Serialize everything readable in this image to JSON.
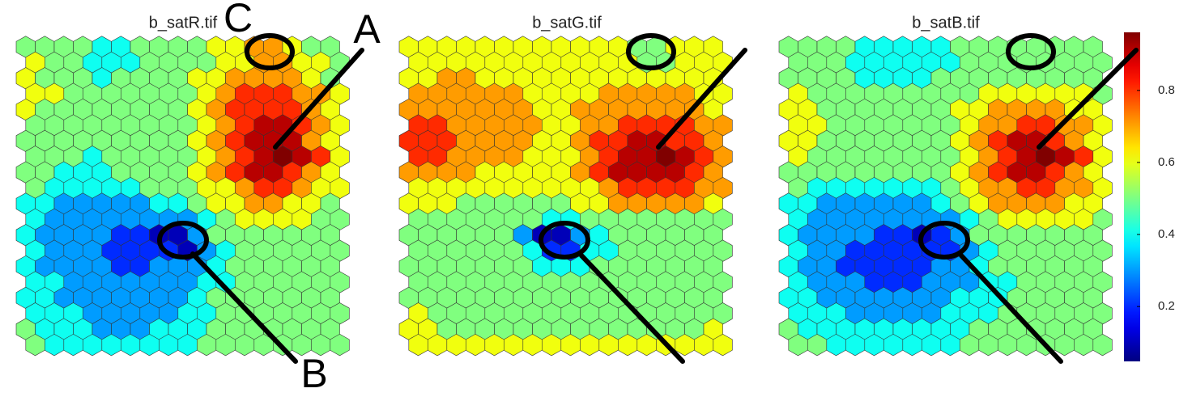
{
  "chart_data": [
    {
      "type": "hexmap",
      "title": "b_satR.tif",
      "values": [
        [
          0.5,
          0.5,
          0.5,
          0.5,
          0.4,
          0.4,
          0.5,
          0.5,
          0.5,
          0.5,
          0.6,
          0.6,
          0.7,
          0.7,
          0.6,
          0.5,
          0.5
        ],
        [
          0.6,
          0.5,
          0.5,
          0.4,
          0.4,
          0.4,
          0.5,
          0.5,
          0.5,
          0.5,
          0.6,
          0.6,
          0.7,
          0.7,
          0.6,
          0.6,
          0.5
        ],
        [
          0.6,
          0.5,
          0.5,
          0.5,
          0.4,
          0.5,
          0.5,
          0.5,
          0.5,
          0.6,
          0.6,
          0.7,
          0.7,
          0.7,
          0.7,
          0.6,
          0.5
        ],
        [
          0.6,
          0.6,
          0.5,
          0.5,
          0.5,
          0.5,
          0.5,
          0.5,
          0.5,
          0.6,
          0.7,
          0.8,
          0.8,
          0.8,
          0.7,
          0.7,
          0.6
        ],
        [
          0.6,
          0.5,
          0.5,
          0.5,
          0.5,
          0.5,
          0.5,
          0.5,
          0.5,
          0.6,
          0.7,
          0.8,
          0.8,
          0.8,
          0.8,
          0.7,
          0.6
        ],
        [
          0.5,
          0.5,
          0.5,
          0.5,
          0.5,
          0.5,
          0.5,
          0.5,
          0.5,
          0.6,
          0.7,
          0.8,
          0.9,
          0.9,
          0.8,
          0.7,
          0.6
        ],
        [
          0.5,
          0.5,
          0.5,
          0.5,
          0.5,
          0.5,
          0.5,
          0.5,
          0.5,
          0.6,
          0.7,
          0.8,
          0.9,
          0.9,
          0.9,
          0.7,
          0.6
        ],
        [
          0.5,
          0.5,
          0.5,
          0.4,
          0.5,
          0.5,
          0.5,
          0.5,
          0.5,
          0.6,
          0.7,
          0.8,
          0.9,
          0.95,
          0.9,
          0.8,
          0.6
        ],
        [
          0.5,
          0.5,
          0.4,
          0.4,
          0.4,
          0.5,
          0.5,
          0.5,
          0.5,
          0.6,
          0.7,
          0.8,
          0.9,
          0.9,
          0.8,
          0.7,
          0.6
        ],
        [
          0.5,
          0.4,
          0.4,
          0.4,
          0.4,
          0.4,
          0.5,
          0.5,
          0.5,
          0.6,
          0.6,
          0.7,
          0.8,
          0.8,
          0.7,
          0.6,
          0.6
        ],
        [
          0.4,
          0.4,
          0.3,
          0.3,
          0.3,
          0.3,
          0.3,
          0.4,
          0.4,
          0.5,
          0.6,
          0.6,
          0.7,
          0.7,
          0.6,
          0.6,
          0.5
        ],
        [
          0.4,
          0.3,
          0.3,
          0.3,
          0.3,
          0.3,
          0.3,
          0.3,
          0.3,
          0.4,
          0.5,
          0.6,
          0.6,
          0.6,
          0.6,
          0.5,
          0.5
        ],
        [
          0.4,
          0.3,
          0.3,
          0.3,
          0.3,
          0.2,
          0.2,
          0.1,
          0.1,
          0.3,
          0.5,
          0.5,
          0.5,
          0.5,
          0.5,
          0.5,
          0.5
        ],
        [
          0.4,
          0.3,
          0.3,
          0.3,
          0.2,
          0.2,
          0.2,
          0.2,
          0.1,
          0.3,
          0.4,
          0.5,
          0.5,
          0.5,
          0.5,
          0.5,
          0.5
        ],
        [
          0.4,
          0.3,
          0.3,
          0.3,
          0.3,
          0.2,
          0.2,
          0.3,
          0.3,
          0.3,
          0.4,
          0.5,
          0.5,
          0.5,
          0.5,
          0.5,
          0.5
        ],
        [
          0.4,
          0.4,
          0.3,
          0.3,
          0.3,
          0.3,
          0.3,
          0.3,
          0.3,
          0.4,
          0.4,
          0.5,
          0.5,
          0.5,
          0.5,
          0.5,
          0.5
        ],
        [
          0.4,
          0.4,
          0.3,
          0.3,
          0.3,
          0.3,
          0.3,
          0.3,
          0.3,
          0.4,
          0.5,
          0.5,
          0.5,
          0.5,
          0.5,
          0.5,
          0.5
        ],
        [
          0.4,
          0.4,
          0.4,
          0.3,
          0.3,
          0.3,
          0.3,
          0.3,
          0.4,
          0.4,
          0.5,
          0.5,
          0.5,
          0.5,
          0.5,
          0.5,
          0.5
        ],
        [
          0.5,
          0.4,
          0.4,
          0.4,
          0.3,
          0.3,
          0.3,
          0.4,
          0.4,
          0.4,
          0.5,
          0.5,
          0.5,
          0.5,
          0.5,
          0.5,
          0.5
        ],
        [
          0.5,
          0.4,
          0.4,
          0.4,
          0.4,
          0.4,
          0.4,
          0.4,
          0.4,
          0.5,
          0.5,
          0.5,
          0.5,
          0.5,
          0.5,
          0.5,
          0.5
        ]
      ]
    },
    {
      "type": "hexmap",
      "title": "b_satG.tif",
      "values": [
        [
          0.6,
          0.6,
          0.6,
          0.6,
          0.6,
          0.6,
          0.6,
          0.6,
          0.6,
          0.6,
          0.6,
          0.6,
          0.5,
          0.5,
          0.6,
          0.6,
          0.6
        ],
        [
          0.6,
          0.6,
          0.6,
          0.6,
          0.6,
          0.6,
          0.6,
          0.6,
          0.6,
          0.6,
          0.6,
          0.6,
          0.5,
          0.5,
          0.6,
          0.6,
          0.6
        ],
        [
          0.6,
          0.6,
          0.7,
          0.7,
          0.6,
          0.6,
          0.6,
          0.6,
          0.6,
          0.6,
          0.6,
          0.6,
          0.6,
          0.6,
          0.6,
          0.6,
          0.6
        ],
        [
          0.7,
          0.7,
          0.7,
          0.7,
          0.7,
          0.7,
          0.6,
          0.6,
          0.6,
          0.6,
          0.7,
          0.7,
          0.7,
          0.7,
          0.7,
          0.6,
          0.6
        ],
        [
          0.7,
          0.7,
          0.7,
          0.7,
          0.7,
          0.7,
          0.7,
          0.6,
          0.6,
          0.7,
          0.7,
          0.7,
          0.7,
          0.7,
          0.7,
          0.7,
          0.6
        ],
        [
          0.8,
          0.8,
          0.7,
          0.7,
          0.7,
          0.7,
          0.7,
          0.6,
          0.6,
          0.7,
          0.7,
          0.8,
          0.8,
          0.8,
          0.8,
          0.7,
          0.7
        ],
        [
          0.8,
          0.8,
          0.8,
          0.7,
          0.7,
          0.7,
          0.7,
          0.6,
          0.6,
          0.7,
          0.8,
          0.8,
          0.9,
          0.9,
          0.8,
          0.8,
          0.7
        ],
        [
          0.8,
          0.8,
          0.7,
          0.7,
          0.7,
          0.7,
          0.6,
          0.6,
          0.6,
          0.7,
          0.8,
          0.9,
          0.9,
          0.95,
          0.9,
          0.8,
          0.7
        ],
        [
          0.7,
          0.7,
          0.7,
          0.7,
          0.6,
          0.6,
          0.6,
          0.6,
          0.6,
          0.7,
          0.8,
          0.9,
          0.9,
          0.9,
          0.9,
          0.8,
          0.7
        ],
        [
          0.6,
          0.6,
          0.6,
          0.6,
          0.6,
          0.6,
          0.6,
          0.6,
          0.6,
          0.6,
          0.7,
          0.8,
          0.8,
          0.8,
          0.8,
          0.7,
          0.7
        ],
        [
          0.6,
          0.6,
          0.6,
          0.5,
          0.5,
          0.5,
          0.5,
          0.5,
          0.5,
          0.6,
          0.6,
          0.7,
          0.7,
          0.7,
          0.7,
          0.7,
          0.6
        ],
        [
          0.5,
          0.5,
          0.5,
          0.5,
          0.5,
          0.5,
          0.5,
          0.4,
          0.4,
          0.5,
          0.5,
          0.5,
          0.5,
          0.5,
          0.5,
          0.5,
          0.5
        ],
        [
          0.5,
          0.5,
          0.5,
          0.5,
          0.5,
          0.5,
          0.3,
          0.1,
          0.1,
          0.3,
          0.4,
          0.5,
          0.5,
          0.5,
          0.5,
          0.5,
          0.5
        ],
        [
          0.5,
          0.5,
          0.5,
          0.5,
          0.5,
          0.5,
          0.4,
          0.2,
          0.2,
          0.4,
          0.4,
          0.5,
          0.5,
          0.5,
          0.5,
          0.5,
          0.5
        ],
        [
          0.5,
          0.5,
          0.5,
          0.5,
          0.5,
          0.5,
          0.5,
          0.4,
          0.4,
          0.4,
          0.5,
          0.5,
          0.5,
          0.5,
          0.5,
          0.5,
          0.5
        ],
        [
          0.5,
          0.5,
          0.5,
          0.5,
          0.5,
          0.5,
          0.5,
          0.5,
          0.5,
          0.5,
          0.5,
          0.5,
          0.5,
          0.5,
          0.5,
          0.5,
          0.5
        ],
        [
          0.5,
          0.5,
          0.5,
          0.5,
          0.5,
          0.5,
          0.5,
          0.5,
          0.5,
          0.5,
          0.5,
          0.5,
          0.5,
          0.5,
          0.5,
          0.5,
          0.5
        ],
        [
          0.6,
          0.5,
          0.5,
          0.5,
          0.5,
          0.5,
          0.5,
          0.5,
          0.5,
          0.5,
          0.5,
          0.5,
          0.5,
          0.5,
          0.5,
          0.5,
          0.5
        ],
        [
          0.6,
          0.6,
          0.5,
          0.5,
          0.5,
          0.5,
          0.5,
          0.5,
          0.5,
          0.5,
          0.5,
          0.5,
          0.5,
          0.5,
          0.5,
          0.5,
          0.6
        ],
        [
          0.6,
          0.6,
          0.6,
          0.6,
          0.6,
          0.6,
          0.6,
          0.6,
          0.6,
          0.6,
          0.6,
          0.6,
          0.6,
          0.6,
          0.6,
          0.6,
          0.6
        ]
      ]
    },
    {
      "type": "hexmap",
      "title": "b_satB.tif",
      "values": [
        [
          0.5,
          0.5,
          0.5,
          0.5,
          0.4,
          0.4,
          0.4,
          0.4,
          0.4,
          0.5,
          0.5,
          0.5,
          0.5,
          0.5,
          0.5,
          0.5,
          0.5
        ],
        [
          0.5,
          0.5,
          0.5,
          0.4,
          0.4,
          0.4,
          0.4,
          0.4,
          0.4,
          0.5,
          0.5,
          0.5,
          0.5,
          0.5,
          0.5,
          0.5,
          0.5
        ],
        [
          0.5,
          0.5,
          0.5,
          0.5,
          0.4,
          0.4,
          0.4,
          0.4,
          0.5,
          0.5,
          0.5,
          0.5,
          0.5,
          0.5,
          0.5,
          0.5,
          0.5
        ],
        [
          0.6,
          0.5,
          0.5,
          0.5,
          0.5,
          0.5,
          0.5,
          0.5,
          0.5,
          0.5,
          0.6,
          0.6,
          0.6,
          0.6,
          0.6,
          0.6,
          0.5
        ],
        [
          0.6,
          0.6,
          0.5,
          0.5,
          0.5,
          0.5,
          0.5,
          0.5,
          0.5,
          0.6,
          0.6,
          0.7,
          0.7,
          0.7,
          0.7,
          0.6,
          0.6
        ],
        [
          0.6,
          0.6,
          0.5,
          0.5,
          0.5,
          0.5,
          0.5,
          0.5,
          0.5,
          0.6,
          0.7,
          0.7,
          0.8,
          0.8,
          0.7,
          0.7,
          0.6
        ],
        [
          0.6,
          0.6,
          0.5,
          0.5,
          0.5,
          0.5,
          0.5,
          0.5,
          0.5,
          0.6,
          0.7,
          0.8,
          0.9,
          0.9,
          0.8,
          0.7,
          0.6
        ],
        [
          0.6,
          0.5,
          0.5,
          0.5,
          0.5,
          0.5,
          0.5,
          0.5,
          0.5,
          0.6,
          0.7,
          0.8,
          0.9,
          0.95,
          0.9,
          0.8,
          0.6
        ],
        [
          0.5,
          0.5,
          0.5,
          0.5,
          0.5,
          0.5,
          0.5,
          0.5,
          0.5,
          0.6,
          0.7,
          0.8,
          0.9,
          0.9,
          0.8,
          0.7,
          0.6
        ],
        [
          0.5,
          0.4,
          0.4,
          0.4,
          0.4,
          0.4,
          0.4,
          0.4,
          0.5,
          0.6,
          0.7,
          0.7,
          0.8,
          0.8,
          0.7,
          0.7,
          0.6
        ],
        [
          0.4,
          0.4,
          0.3,
          0.3,
          0.3,
          0.3,
          0.3,
          0.3,
          0.4,
          0.5,
          0.6,
          0.7,
          0.7,
          0.7,
          0.7,
          0.6,
          0.6
        ],
        [
          0.4,
          0.3,
          0.3,
          0.3,
          0.3,
          0.3,
          0.3,
          0.3,
          0.3,
          0.4,
          0.5,
          0.6,
          0.6,
          0.6,
          0.6,
          0.6,
          0.5
        ],
        [
          0.4,
          0.3,
          0.3,
          0.3,
          0.3,
          0.2,
          0.2,
          0.1,
          0.2,
          0.3,
          0.5,
          0.5,
          0.5,
          0.5,
          0.5,
          0.5,
          0.5
        ],
        [
          0.4,
          0.3,
          0.3,
          0.2,
          0.2,
          0.2,
          0.2,
          0.2,
          0.2,
          0.3,
          0.4,
          0.5,
          0.5,
          0.5,
          0.5,
          0.5,
          0.5
        ],
        [
          0.4,
          0.3,
          0.3,
          0.2,
          0.2,
          0.2,
          0.2,
          0.2,
          0.3,
          0.3,
          0.4,
          0.5,
          0.5,
          0.5,
          0.5,
          0.5,
          0.5
        ],
        [
          0.4,
          0.3,
          0.3,
          0.3,
          0.2,
          0.2,
          0.2,
          0.3,
          0.3,
          0.3,
          0.4,
          0.4,
          0.5,
          0.5,
          0.5,
          0.5,
          0.5
        ],
        [
          0.4,
          0.4,
          0.3,
          0.3,
          0.3,
          0.3,
          0.3,
          0.3,
          0.3,
          0.4,
          0.4,
          0.4,
          0.5,
          0.5,
          0.5,
          0.5,
          0.5
        ],
        [
          0.4,
          0.4,
          0.4,
          0.3,
          0.3,
          0.3,
          0.3,
          0.3,
          0.4,
          0.4,
          0.4,
          0.5,
          0.5,
          0.5,
          0.5,
          0.5,
          0.5
        ],
        [
          0.5,
          0.4,
          0.4,
          0.4,
          0.4,
          0.4,
          0.4,
          0.4,
          0.4,
          0.4,
          0.5,
          0.5,
          0.5,
          0.5,
          0.5,
          0.5,
          0.5
        ],
        [
          0.5,
          0.5,
          0.4,
          0.4,
          0.4,
          0.4,
          0.4,
          0.4,
          0.4,
          0.5,
          0.5,
          0.5,
          0.5,
          0.5,
          0.5,
          0.5,
          0.5
        ]
      ]
    }
  ],
  "colorbar": {
    "colormap": "jet",
    "lim": [
      0.05,
      0.95
    ],
    "ticks": [
      0.2,
      0.4,
      0.6,
      0.8
    ]
  },
  "annotations": [
    "A",
    "B",
    "C"
  ]
}
